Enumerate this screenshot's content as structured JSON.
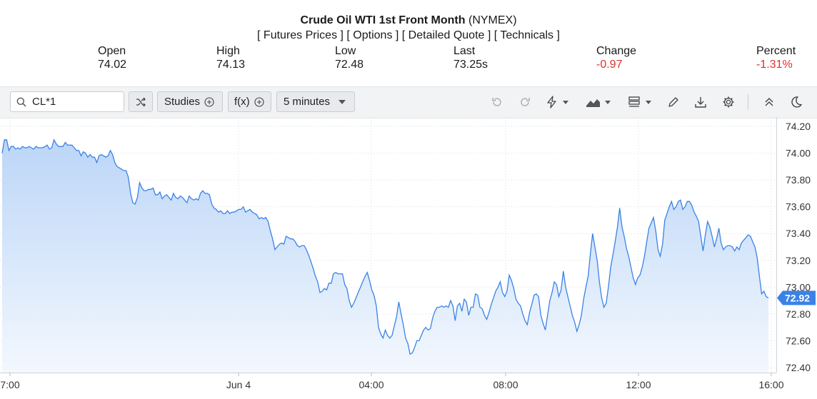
{
  "header": {
    "title": "Crude Oil WTI 1st Front Month",
    "exchange": "(NYMEX)",
    "links": [
      "[ Futures Prices ]",
      "[ Options ]",
      "[ Detailed Quote ]",
      "[ Technicals ]"
    ]
  },
  "stats": {
    "open": {
      "label": "Open",
      "value": "74.02"
    },
    "high": {
      "label": "High",
      "value": "74.13"
    },
    "low": {
      "label": "Low",
      "value": "72.48"
    },
    "last": {
      "label": "Last",
      "value": "73.25s"
    },
    "change": {
      "label": "Change",
      "value": "-0.97"
    },
    "percent": {
      "label": "Percent",
      "value": "-1.31%"
    }
  },
  "toolbar": {
    "symbol_value": "CL*1",
    "search_icon": "search-icon",
    "compare_icon": "shuffle-icon",
    "studies_label": "Studies",
    "fx_label": "f(x)",
    "interval_value": "5 minutes",
    "right_icons": [
      "undo-icon",
      "redo-icon",
      "lightning-icon",
      "chart-type-icon",
      "template-icon",
      "pencil-icon",
      "download-icon",
      "gear-icon",
      "collapse-icon",
      "moon-icon"
    ]
  },
  "colors": {
    "line": "#3b82e6",
    "fill_top": "#bcd6f7",
    "fill_bottom": "#f3f8fe",
    "negative": "#e0302a",
    "last_label_bg": "#3b82e6"
  },
  "chart_data": {
    "type": "area",
    "y_ticks": [
      "74.20",
      "74.00",
      "73.80",
      "73.60",
      "73.40",
      "73.20",
      "73.00",
      "72.80",
      "72.60",
      "72.40"
    ],
    "ylim": [
      72.4,
      74.2
    ],
    "x_ticks": [
      "7:00",
      "Jun 4",
      "04:00",
      "08:00",
      "12:00",
      "16:00"
    ],
    "last_value": "72.92",
    "grid": "dotted",
    "series": [
      {
        "values": [
          74.0,
          74.1,
          74.1,
          74.02,
          74.05,
          74.05,
          74.03,
          74.04,
          74.03,
          74.05,
          74.04,
          74.04,
          74.05,
          74.04,
          74.03,
          74.05,
          74.04,
          74.04,
          74.04,
          74.05,
          74.06,
          74.03,
          74.04,
          74.1,
          74.07,
          74.05,
          74.05,
          74.05,
          74.08,
          74.06,
          74.06,
          74.06,
          74.04,
          74.02,
          74.02,
          73.98,
          74.01,
          74.0,
          73.97,
          73.99,
          73.97,
          73.97,
          73.93,
          73.98,
          73.99,
          73.98,
          73.97,
          73.98,
          74.02,
          73.99,
          73.93,
          73.9,
          73.89,
          73.88,
          73.87,
          73.87,
          73.82,
          73.7,
          73.63,
          73.62,
          73.67,
          73.78,
          73.74,
          73.72,
          73.72,
          73.73,
          73.73,
          73.74,
          73.69,
          73.69,
          73.71,
          73.66,
          73.68,
          73.69,
          73.67,
          73.65,
          73.7,
          73.67,
          73.66,
          73.68,
          73.67,
          73.65,
          73.63,
          73.68,
          73.66,
          73.65,
          73.66,
          73.65,
          73.7,
          73.72,
          73.7,
          73.7,
          73.69,
          73.62,
          73.59,
          73.58,
          73.56,
          73.57,
          73.55,
          73.55,
          73.57,
          73.55,
          73.56,
          73.56,
          73.57,
          73.58,
          73.58,
          73.6,
          73.56,
          73.57,
          73.58,
          73.56,
          73.55,
          73.54,
          73.51,
          73.52,
          73.51,
          73.52,
          73.49,
          73.42,
          73.36,
          73.28,
          73.3,
          73.32,
          73.33,
          73.32,
          73.38,
          73.37,
          73.36,
          73.36,
          73.34,
          73.31,
          73.3,
          73.31,
          73.31,
          73.28,
          73.24,
          73.19,
          73.14,
          73.08,
          73.04,
          72.96,
          72.97,
          72.99,
          72.98,
          73.03,
          73.03,
          73.1,
          73.11,
          73.1,
          73.1,
          73.1,
          73.02,
          72.99,
          72.9,
          72.85,
          72.88,
          72.92,
          72.96,
          73.0,
          73.04,
          73.08,
          73.11,
          73.05,
          72.98,
          72.94,
          72.86,
          72.7,
          72.65,
          72.62,
          72.68,
          72.64,
          72.62,
          72.64,
          72.71,
          72.78,
          72.89,
          72.8,
          72.72,
          72.62,
          72.58,
          72.5,
          72.51,
          72.55,
          72.6,
          72.6,
          72.64,
          72.68,
          72.7,
          72.68,
          72.69,
          72.77,
          72.82,
          72.85,
          72.85,
          72.86,
          72.85,
          72.86,
          72.85,
          72.9,
          72.86,
          72.75,
          72.86,
          72.88,
          72.82,
          72.91,
          72.89,
          72.79,
          72.85,
          72.85,
          72.95,
          72.94,
          72.85,
          72.84,
          72.79,
          72.76,
          72.81,
          72.87,
          72.92,
          72.97,
          73.0,
          73.04,
          72.96,
          72.93,
          72.97,
          73.09,
          73.05,
          72.99,
          72.91,
          72.88,
          72.86,
          72.8,
          72.75,
          72.72,
          72.81,
          72.87,
          72.94,
          72.95,
          72.93,
          72.79,
          72.73,
          72.68,
          72.79,
          72.9,
          72.96,
          73.04,
          73.02,
          72.93,
          72.98,
          73.12,
          73.0,
          72.93,
          72.86,
          72.79,
          72.74,
          72.67,
          72.72,
          72.79,
          72.91,
          73.0,
          73.08,
          73.25,
          73.4,
          73.3,
          73.2,
          73.04,
          72.92,
          72.85,
          72.88,
          73.0,
          73.15,
          73.24,
          73.34,
          73.45,
          73.59,
          73.45,
          73.38,
          73.29,
          73.23,
          73.15,
          73.07,
          73.02,
          73.07,
          73.09,
          73.15,
          73.23,
          73.34,
          73.44,
          73.48,
          73.52,
          73.42,
          73.28,
          73.23,
          73.32,
          73.5,
          73.55,
          73.6,
          73.64,
          73.58,
          73.6,
          73.64,
          73.65,
          73.58,
          73.6,
          73.64,
          73.64,
          73.61,
          73.56,
          73.53,
          73.49,
          73.38,
          73.27,
          73.39,
          73.49,
          73.45,
          73.38,
          73.3,
          73.36,
          73.44,
          73.33,
          73.28,
          73.3,
          73.31,
          73.31,
          73.3,
          73.27,
          73.3,
          73.28,
          73.33,
          73.35,
          73.37,
          73.39,
          73.38,
          73.34,
          73.3,
          73.22,
          73.08,
          72.95,
          72.97,
          72.93,
          72.92
        ]
      }
    ]
  }
}
